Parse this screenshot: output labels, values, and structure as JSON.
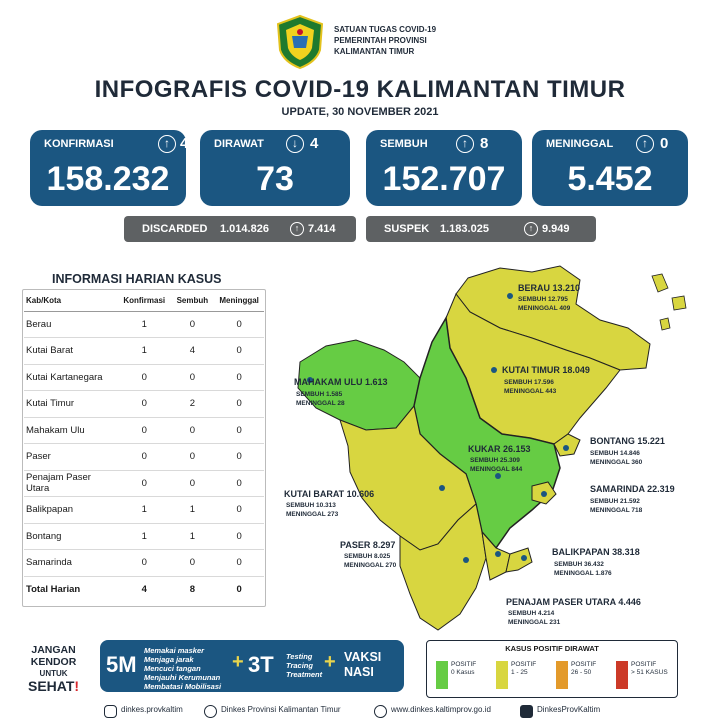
{
  "header": {
    "org_lines": [
      "SATUAN TUGAS COVID-19",
      "PEMERINTAH PROVINSI",
      "KALIMANTAN TIMUR"
    ],
    "title": "INFOGRAFIS COVID-19 KALIMANTAN TIMUR",
    "update": "UPDATE, 30 NOVEMBER 2021"
  },
  "stats": [
    {
      "label": "KONFIRMASI",
      "arrow": "up",
      "change": "4",
      "value": "158.232"
    },
    {
      "label": "DIRAWAT",
      "arrow": "down",
      "change": "4",
      "value": "73"
    },
    {
      "label": "SEMBUH",
      "arrow": "up",
      "change": "8",
      "value": "152.707"
    },
    {
      "label": "MENINGGAL",
      "arrow": "up",
      "change": "0",
      "value": "5.452"
    }
  ],
  "discarded": {
    "label": "DISCARDED",
    "value": "1.014.826",
    "change": "7.414"
  },
  "suspek": {
    "label": "SUSPEK",
    "value": "1.183.025",
    "change": "9.949"
  },
  "table": {
    "title": "INFORMASI HARIAN KASUS",
    "headers": [
      "Kab/Kota",
      "Konfirmasi",
      "Sembuh",
      "Meninggal"
    ],
    "rows": [
      [
        "Berau",
        "1",
        "0",
        "0"
      ],
      [
        "Kutai Barat",
        "1",
        "4",
        "0"
      ],
      [
        "Kutai Kartanegara",
        "0",
        "0",
        "0"
      ],
      [
        "Kutai Timur",
        "0",
        "2",
        "0"
      ],
      [
        "Mahakam Ulu",
        "0",
        "0",
        "0"
      ],
      [
        "Paser",
        "0",
        "0",
        "0"
      ],
      [
        "Penajam Paser Utara",
        "0",
        "0",
        "0"
      ],
      [
        "Balikpapan",
        "1",
        "1",
        "0"
      ],
      [
        "Bontang",
        "1",
        "1",
        "0"
      ],
      [
        "Samarinda",
        "0",
        "0",
        "0"
      ]
    ],
    "total": [
      "Total Harian",
      "4",
      "8",
      "0"
    ]
  },
  "regions": {
    "berau": {
      "name": "BERAU 13.210",
      "sembuh": "SEMBUH 12.795",
      "meninggal": "MENINGGAL 409"
    },
    "mahulu": {
      "name": "MAHAKAM ULU 1.613",
      "sembuh": "SEMBUH 1.585",
      "meninggal": "MENINGGAL 28"
    },
    "kutim": {
      "name": "KUTAI TIMUR 18.049",
      "sembuh": "SEMBUH 17.596",
      "meninggal": "MENINGGAL 443"
    },
    "kukar": {
      "name": "KUKAR 26.153",
      "sembuh": "SEMBUH 25.309",
      "meninggal": "MENINGGAL 844"
    },
    "bontang": {
      "name": "BONTANG 15.221",
      "sembuh": "SEMBUH 14.846",
      "meninggal": "MENINGGAL 360"
    },
    "kubar": {
      "name": "KUTAI BARAT 10.606",
      "sembuh": "SEMBUH 10.313",
      "meninggal": "MENINGGAL 273"
    },
    "samarinda": {
      "name": "SAMARINDA 22.319",
      "sembuh": "SEMBUH 21.592",
      "meninggal": "MENINGGAL 718"
    },
    "paser": {
      "name": "PASER 8.297",
      "sembuh": "SEMBUH 8.025",
      "meninggal": "MENINGGAL 270"
    },
    "balikpapan": {
      "name": "BALIKPAPAN 38.318",
      "sembuh": "SEMBUH 36.432",
      "meninggal": "MENINGGAL 1.876"
    },
    "ppu": {
      "name": "PENAJAM PASER UTARA 4.446",
      "sembuh": "SEMBUH 4.214",
      "meninggal": "MENINGGAL 231"
    }
  },
  "slogan": {
    "l1": "JANGAN",
    "l2": "KENDOR",
    "l3": "UNTUK",
    "l4": "SEHAT",
    "mark": "!"
  },
  "campaign": {
    "m5": "5M",
    "m5_items": [
      "Memakai masker",
      "Menjaga jarak",
      "Mencuci tangan",
      "Menjauhi Kerumunan",
      "Membatasi Mobilisasi"
    ],
    "plus": "+",
    "t3": "3T",
    "t3_items": [
      "Testing",
      "Tracing",
      "Treatment"
    ],
    "vaksi": [
      "VAKSI",
      "NASI"
    ]
  },
  "legend": {
    "title": "KASUS POSITIF DIRAWAT",
    "items": [
      {
        "l1": "POSITIF",
        "l2": "0 Kasus",
        "color": "#66cc44"
      },
      {
        "l1": "POSITIF",
        "l2": "1 - 25",
        "color": "#d8d640"
      },
      {
        "l1": "POSITIF",
        "l2": "26 - 50",
        "color": "#e39a2b"
      },
      {
        "l1": "POSITIF",
        "l2": "> 51 KASUS",
        "color": "#cc3a28"
      }
    ]
  },
  "footer": {
    "instagram": "dinkes.provkaltim",
    "facebook": "Dinkes Provinsi Kalimantan Timur",
    "web": "www.dinkes.kaltimprov.go.id",
    "youtube": "DinkesProvKaltim"
  },
  "colors": {
    "card": "#1b5681",
    "green": "#66cc44",
    "yellow": "#d8d640"
  }
}
